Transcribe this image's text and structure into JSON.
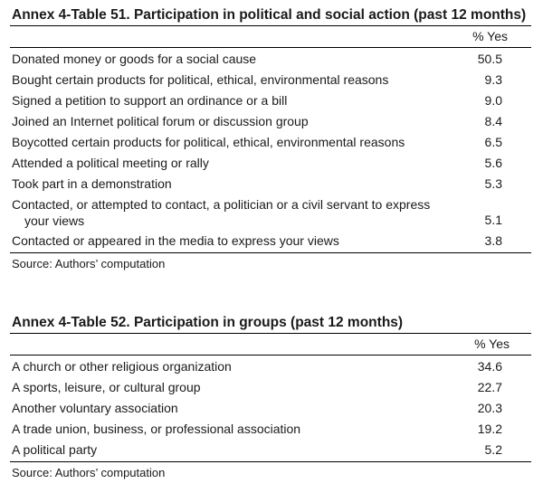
{
  "table51": {
    "title": "Annex 4-Table 51. Participation in political and social action (past 12 months)",
    "column_header": "% Yes",
    "rows": [
      {
        "label": "Donated money or goods for a social cause",
        "value": "50.5"
      },
      {
        "label": "Bought certain products for political, ethical, environmental reasons",
        "value": "9.3"
      },
      {
        "label": "Signed a petition to support an ordinance or a bill",
        "value": "9.0"
      },
      {
        "label": "Joined an Internet political forum or discussion group",
        "value": "8.4"
      },
      {
        "label": "Boycotted certain products for political, ethical, environmental reasons",
        "value": "6.5"
      },
      {
        "label": "Attended a political meeting or rally",
        "value": "5.6"
      },
      {
        "label": "Took part in a demonstration",
        "value": "5.3"
      },
      {
        "label_line1": "Contacted, or attempted to contact, a politician or a civil servant to express",
        "label_line2": "your views",
        "value": "5.1"
      },
      {
        "label": "Contacted or appeared in the media to express your views",
        "value": "3.8"
      }
    ],
    "source": "Source: Authors’ computation"
  },
  "table52": {
    "title": "Annex 4-Table 52. Participation in groups (past 12 months)",
    "column_header": "% Yes",
    "rows": [
      {
        "label": "A church or other religious organization",
        "value": "34.6"
      },
      {
        "label": "A sports, leisure, or cultural group",
        "value": "22.7"
      },
      {
        "label": "Another voluntary association",
        "value": "20.3"
      },
      {
        "label": "A trade union, business, or professional association",
        "value": "19.2"
      },
      {
        "label": "A political party",
        "value": "5.2"
      }
    ],
    "source": "Source: Authors’ computation"
  }
}
